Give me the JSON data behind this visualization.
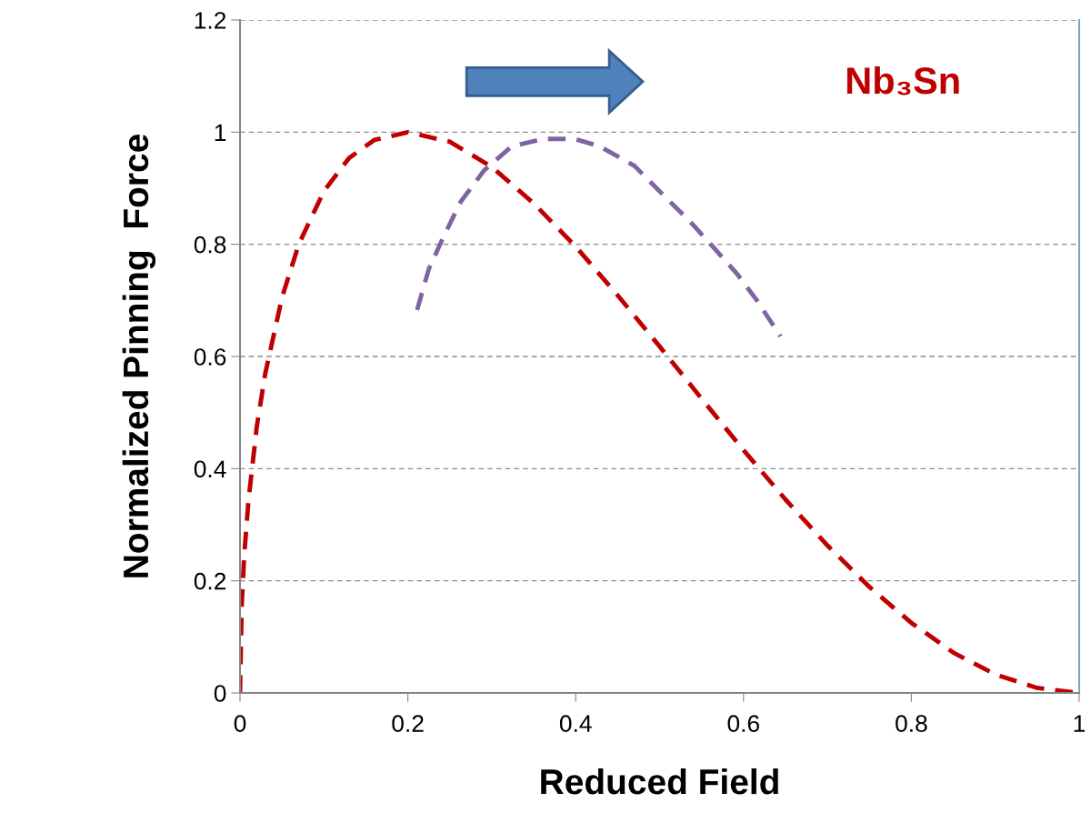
{
  "chart_data": {
    "type": "line",
    "xlabel": "Reduced Field",
    "ylabel": "Normalized Pinning  Force",
    "annotations": [
      "Nb₃Sn"
    ],
    "series": [
      {
        "color": "#c00000",
        "x": [
          0,
          0.002,
          0.005,
          0.01,
          0.02,
          0.03,
          0.05,
          0.07,
          0.1,
          0.13,
          0.16,
          0.2,
          0.25,
          0.3,
          0.35,
          0.4,
          0.45,
          0.5,
          0.55,
          0.6,
          0.65,
          0.7,
          0.75,
          0.8,
          0.85,
          0.9,
          0.95,
          1.0
        ],
        "values": [
          0,
          0.156,
          0.245,
          0.342,
          0.475,
          0.569,
          0.705,
          0.8,
          0.895,
          0.954,
          0.986,
          1.0,
          0.983,
          0.938,
          0.873,
          0.796,
          0.709,
          0.618,
          0.525,
          0.433,
          0.345,
          0.263,
          0.189,
          0.125,
          0.072,
          0.033,
          0.009,
          0
        ]
      },
      {
        "color": "#8064a2",
        "x": [
          0.211,
          0.225,
          0.242,
          0.263,
          0.291,
          0.324,
          0.362,
          0.399,
          0.428,
          0.47,
          0.503,
          0.536,
          0.564,
          0.593,
          0.616,
          0.644
        ],
        "values": [
          0.683,
          0.756,
          0.812,
          0.876,
          0.932,
          0.975,
          0.988,
          0.988,
          0.975,
          0.94,
          0.89,
          0.841,
          0.795,
          0.746,
          0.7,
          0.636
        ]
      }
    ],
    "xlim": [
      0,
      1
    ],
    "xticks": [
      0,
      0.2,
      0.4,
      0.6,
      0.8,
      1
    ],
    "ylim": [
      0,
      1.2
    ],
    "yticks": [
      0,
      0.2,
      0.4,
      0.6,
      0.8,
      1,
      1.2
    ],
    "grid": "y",
    "legend": false,
    "marker": "none",
    "line_style": "dashed"
  }
}
